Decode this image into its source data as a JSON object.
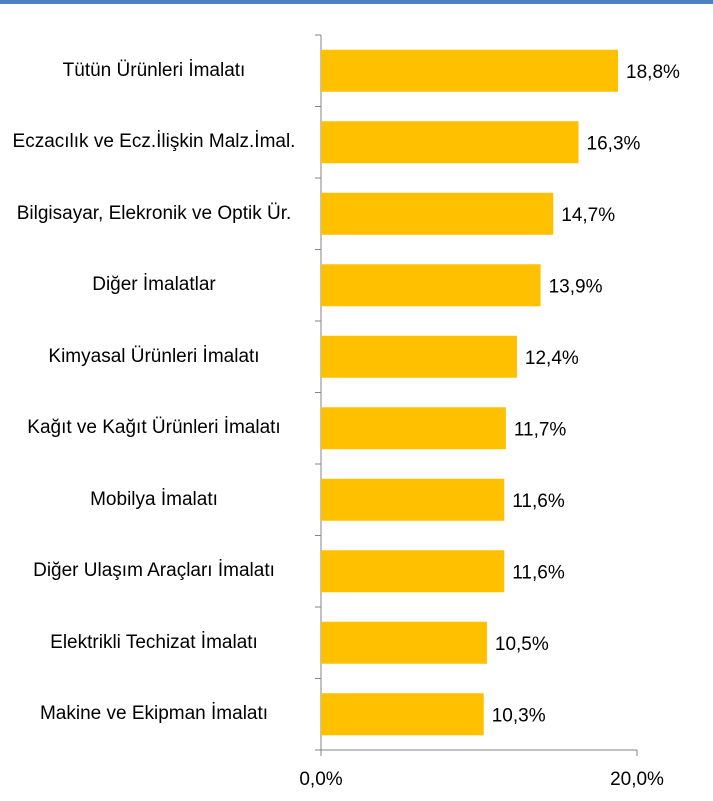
{
  "chart_data": {
    "type": "bar",
    "orientation": "horizontal",
    "categories": [
      "Tütün Ürünleri İmalatı",
      "Eczacılık ve Ecz.İlişkin Malz.İmal.",
      "Bilgisayar, Elekronik ve Optik Ür.",
      "Diğer İmalatlar",
      "Kimyasal Ürünleri İmalatı",
      "Kağıt ve Kağıt Ürünleri İmalatı",
      "Mobilya İmalatı",
      "Diğer Ulaşım Araçları İmalatı",
      "Elektrikli Techizat İmalatı",
      "Makine ve Ekipman İmalatı"
    ],
    "values": [
      18.8,
      16.3,
      14.7,
      13.9,
      12.4,
      11.7,
      11.6,
      11.6,
      10.5,
      10.3
    ],
    "value_labels": [
      "18,8%",
      "16,3%",
      "14,7%",
      "13,9%",
      "12,4%",
      "11,7%",
      "11,6%",
      "11,6%",
      "10,5%",
      "10,3%"
    ],
    "color": "#ffc000",
    "xlim": [
      0,
      20
    ],
    "xticks": [
      {
        "value": 0,
        "label": "0,0%"
      },
      {
        "value": 20,
        "label": "20,0%"
      }
    ]
  }
}
